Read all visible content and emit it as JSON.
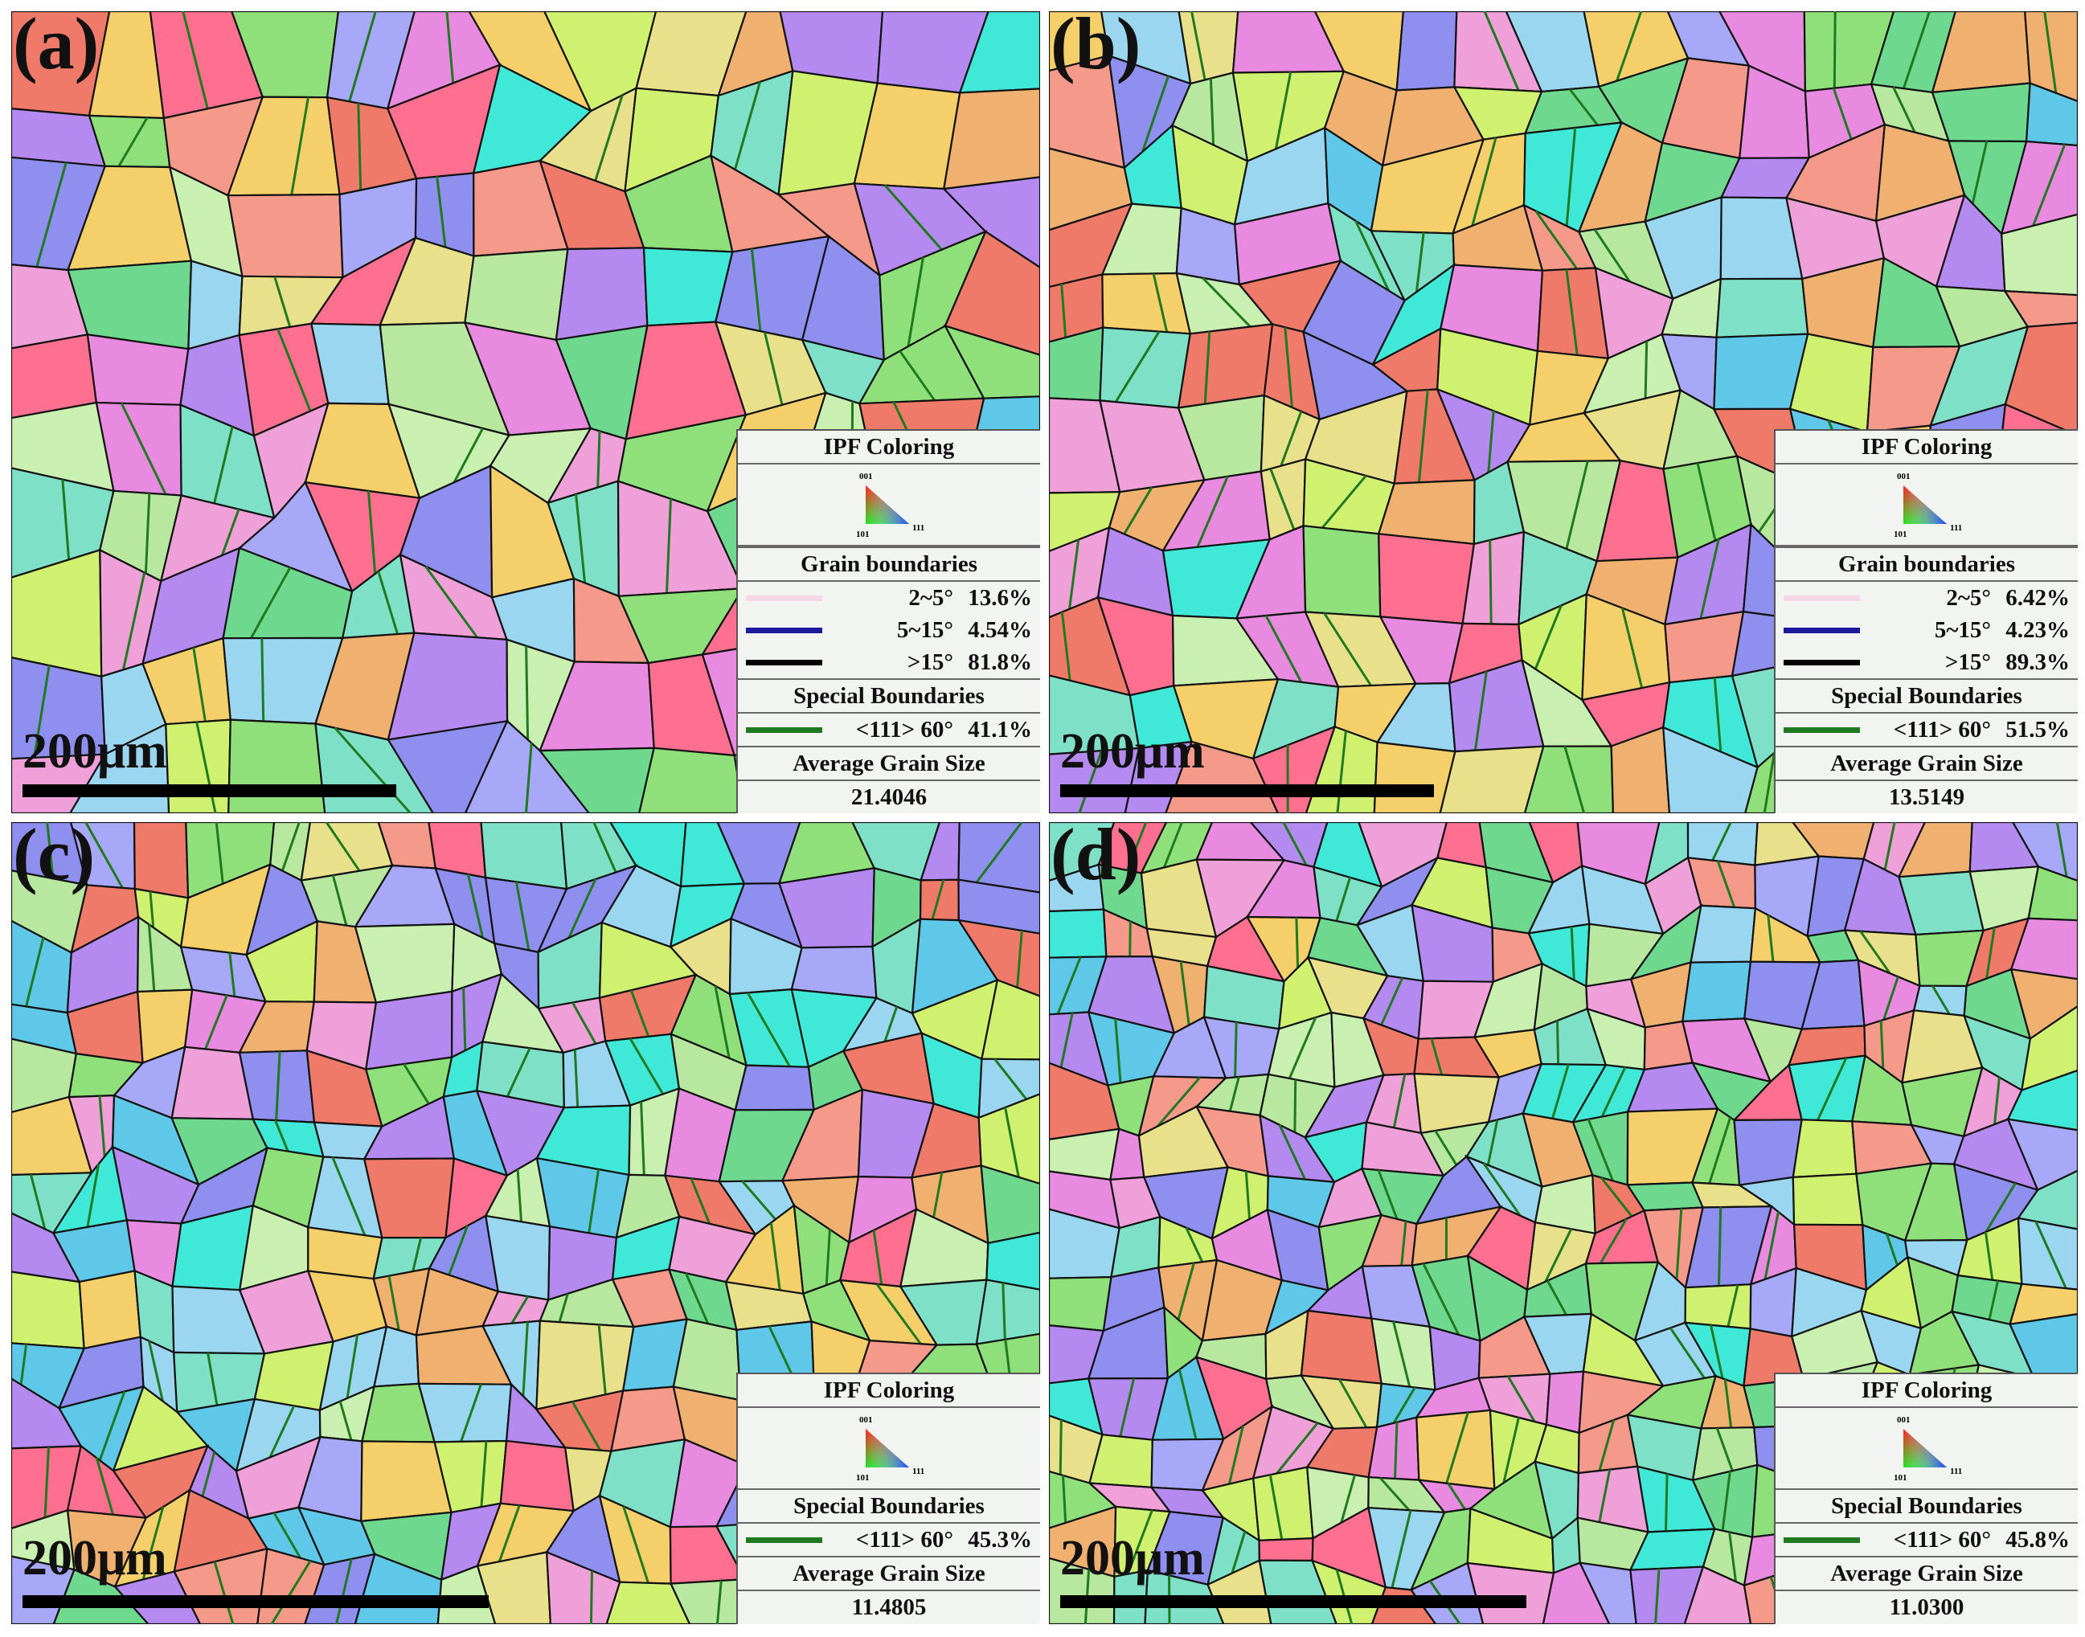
{
  "panels": [
    {
      "id": "a",
      "label": "(a)",
      "scale": "200μm",
      "legend": {
        "ipf_title": "IPF Coloring",
        "ipf_corners": [
          "001",
          "101",
          "111"
        ],
        "grain_title": "Grain boundaries",
        "grain_rows": [
          {
            "name": "2~5°",
            "value": "13.6%",
            "color": "#f7d6e6"
          },
          {
            "name": "5~15°",
            "value": "4.54%",
            "color": "#1a1a9a"
          },
          {
            "name": ">15°",
            "value": "81.8%",
            "color": "#000000"
          }
        ],
        "special_title": "Special Boundaries",
        "special_row": {
          "name": "<111> 60°",
          "value": "41.1%",
          "color": "#1f7a1f"
        },
        "size_title": "Average Grain Size",
        "size_value": "21.4046"
      }
    },
    {
      "id": "b",
      "label": "(b)",
      "scale": "200μm",
      "legend": {
        "ipf_title": "IPF Coloring",
        "ipf_corners": [
          "001",
          "101",
          "111"
        ],
        "grain_title": "Grain boundaries",
        "grain_rows": [
          {
            "name": "2~5°",
            "value": "6.42%",
            "color": "#f7d6e6"
          },
          {
            "name": "5~15°",
            "value": "4.23%",
            "color": "#1a1a9a"
          },
          {
            "name": ">15°",
            "value": "89.3%",
            "color": "#000000"
          }
        ],
        "special_title": "Special Boundaries",
        "special_row": {
          "name": "<111> 60°",
          "value": "51.5%",
          "color": "#1f7a1f"
        },
        "size_title": "Average Grain Size",
        "size_value": "13.5149"
      }
    },
    {
      "id": "c",
      "label": "(c)",
      "scale": "200μm",
      "legend": {
        "ipf_title": "IPF Coloring",
        "ipf_corners": [
          "001",
          "101",
          "111"
        ],
        "special_title": "Special Boundaries",
        "special_row": {
          "name": "<111> 60°",
          "value": "45.3%",
          "color": "#1f7a1f"
        },
        "size_title": "Average Grain Size",
        "size_value": "11.4805"
      }
    },
    {
      "id": "d",
      "label": "(d)",
      "scale": "200μm",
      "legend": {
        "ipf_title": "IPF Coloring",
        "ipf_corners": [
          "001",
          "101",
          "111"
        ],
        "special_title": "Special Boundaries",
        "special_row": {
          "name": "<111> 60°",
          "value": "45.8%",
          "color": "#1f7a1f"
        },
        "size_title": "Average Grain Size",
        "size_value": "11.0300"
      }
    }
  ],
  "grain_palette": [
    "#f07a6a",
    "#f59a8a",
    "#8fe07a",
    "#6fd88f",
    "#b8e8a0",
    "#9ad6ef",
    "#5fc7e8",
    "#8f8ff0",
    "#b58af0",
    "#e88ae0",
    "#f0a0d8",
    "#f5d06a",
    "#e8e08a",
    "#c9f0b0",
    "#7fe0c8",
    "#40e8d8",
    "#f0b070",
    "#a8a8f8",
    "#ff7090",
    "#d0f070"
  ]
}
